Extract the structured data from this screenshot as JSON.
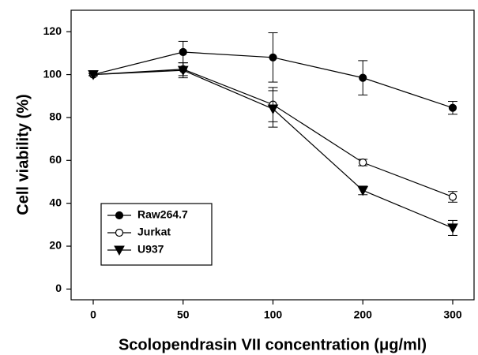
{
  "chart_data": {
    "type": "line",
    "x_label": "Scolopendrasin VII concentration (μg/ml)",
    "y_label": "Cell viability (%)",
    "categories": [
      "0",
      "50",
      "100",
      "200",
      "300"
    ],
    "series": [
      {
        "name": "Raw264.7",
        "color": "#000000",
        "marker": "circle",
        "values": [
          100,
          110.5,
          108,
          98.5,
          84.5
        ],
        "errors": [
          0.5,
          5,
          11.5,
          8,
          3
        ]
      },
      {
        "name": "Jurkat",
        "color": "#000000",
        "marker": "open-circle",
        "values": [
          100,
          102.5,
          86,
          59,
          43
        ],
        "errors": [
          0.5,
          3,
          8,
          1.5,
          2.5
        ]
      },
      {
        "name": "U937",
        "color": "#000000",
        "marker": "triangle-down",
        "values": [
          100,
          102,
          84,
          46,
          28.5
        ],
        "errors": [
          0.5,
          3.5,
          8.5,
          2,
          3.5
        ]
      }
    ],
    "ylim": [
      -5,
      130
    ],
    "yticks": [
      0,
      20,
      40,
      60,
      80,
      100,
      120
    ],
    "grid": false,
    "legend": "lower-left"
  }
}
